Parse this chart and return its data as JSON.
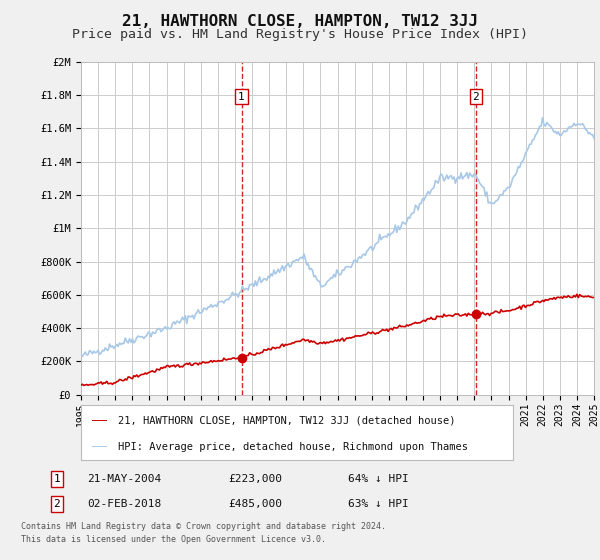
{
  "title": "21, HAWTHORN CLOSE, HAMPTON, TW12 3JJ",
  "subtitle": "Price paid vs. HM Land Registry's House Price Index (HPI)",
  "title_fontsize": 11.5,
  "subtitle_fontsize": 9.5,
  "bg_color": "#f0f0f0",
  "plot_bg_color": "#ffffff",
  "grid_color": "#cccccc",
  "hpi_color": "#a8c8e8",
  "price_color": "#cc0000",
  "sale1_date": 2004.39,
  "sale1_price": 223000,
  "sale1_label": "1",
  "sale2_date": 2018.09,
  "sale2_price": 485000,
  "sale2_label": "2",
  "xmin": 1995,
  "xmax": 2025,
  "ymin": 0,
  "ymax": 2000000,
  "legend1": "21, HAWTHORN CLOSE, HAMPTON, TW12 3JJ (detached house)",
  "legend2": "HPI: Average price, detached house, Richmond upon Thames",
  "footer1": "Contains HM Land Registry data © Crown copyright and database right 2024.",
  "footer2": "This data is licensed under the Open Government Licence v3.0.",
  "label1_date": "21-MAY-2004",
  "label1_price": "£223,000",
  "label1_pct": "64% ↓ HPI",
  "label2_date": "02-FEB-2018",
  "label2_price": "£485,000",
  "label2_pct": "63% ↓ HPI"
}
